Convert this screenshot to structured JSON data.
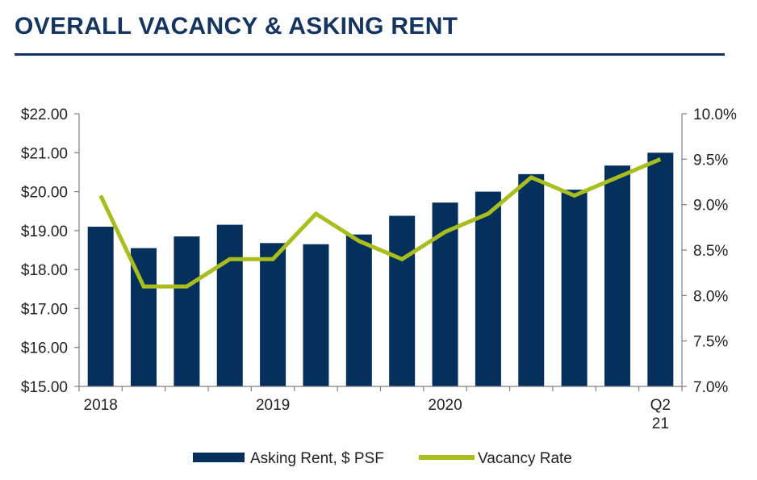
{
  "title": "OVERALL VACANCY & ASKING RENT",
  "colors": {
    "title": "#15345f",
    "bar": "#06305c",
    "line": "#a9be1e",
    "axis": "#7f7f7f"
  },
  "chart_data": {
    "type": "bar",
    "categories": [
      "Q1 18",
      "Q2 18",
      "Q3 18",
      "Q4 18",
      "Q1 19",
      "Q2 19",
      "Q3 19",
      "Q4 19",
      "Q1 20",
      "Q2 20",
      "Q3 20",
      "Q4 20",
      "Q1 21",
      "Q2 21"
    ],
    "x_tick_labels": [
      {
        "index": 0,
        "lines": [
          "2018"
        ]
      },
      {
        "index": 4,
        "lines": [
          "2019"
        ]
      },
      {
        "index": 8,
        "lines": [
          "2020"
        ]
      },
      {
        "index": 13,
        "lines": [
          "Q2",
          "21"
        ]
      }
    ],
    "series": [
      {
        "name": "Asking Rent, $ PSF",
        "type": "bar",
        "axis": "left",
        "values": [
          19.1,
          18.55,
          18.85,
          19.15,
          18.68,
          18.65,
          18.9,
          19.38,
          19.72,
          20.0,
          20.45,
          20.05,
          20.67,
          21.0
        ]
      },
      {
        "name": "Vacancy Rate",
        "type": "line",
        "axis": "right",
        "values": [
          9.1,
          8.1,
          8.1,
          8.4,
          8.4,
          8.9,
          8.6,
          8.4,
          8.7,
          8.9,
          9.3,
          9.1,
          9.3,
          9.5
        ]
      }
    ],
    "y_left": {
      "min": 15,
      "max": 22,
      "step": 1,
      "tick_labels": [
        "$15.00",
        "$16.00",
        "$17.00",
        "$18.00",
        "$19.00",
        "$20.00",
        "$21.00",
        "$22.00"
      ]
    },
    "y_right": {
      "min": 7.0,
      "max": 10.0,
      "step": 0.5,
      "tick_labels": [
        "7.0%",
        "7.5%",
        "8.0%",
        "8.5%",
        "9.0%",
        "9.5%",
        "10.0%"
      ]
    },
    "grid": false,
    "legend": {
      "position": "bottom",
      "items": [
        {
          "label": "Asking Rent, $ PSF",
          "kind": "bar"
        },
        {
          "label": "Vacancy Rate",
          "kind": "line"
        }
      ]
    }
  }
}
